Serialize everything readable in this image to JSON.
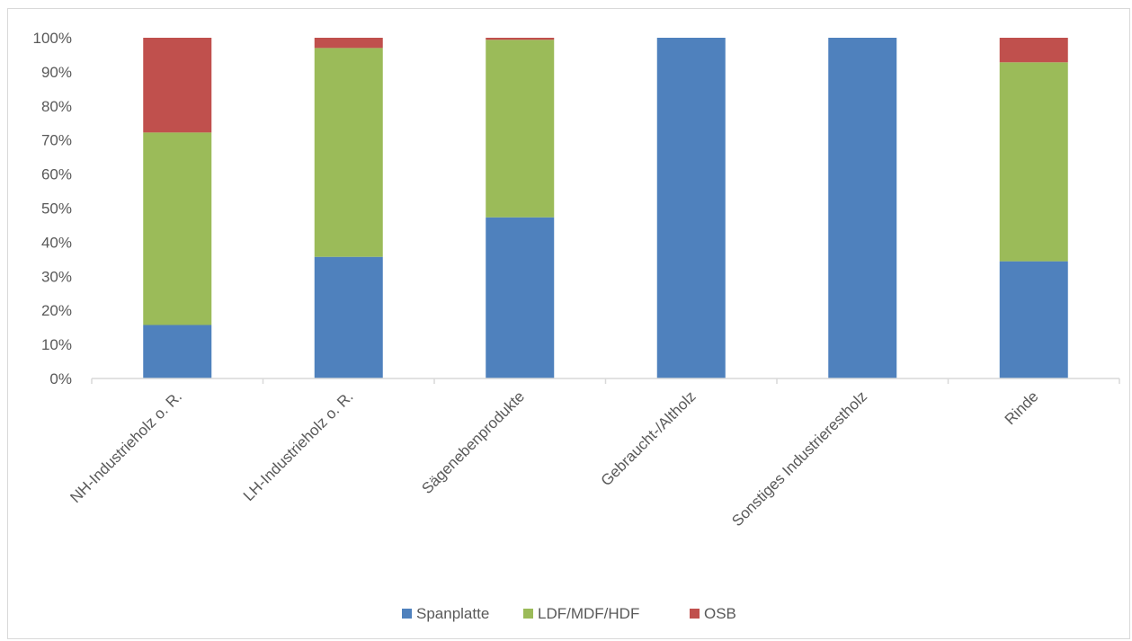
{
  "chart_data": {
    "type": "bar",
    "stacked": true,
    "percent": true,
    "title": "",
    "xlabel": "",
    "ylabel": "",
    "ylim": [
      0,
      100
    ],
    "yticks": [
      "0%",
      "10%",
      "20%",
      "30%",
      "40%",
      "50%",
      "60%",
      "70%",
      "80%",
      "90%",
      "100%"
    ],
    "grid": false,
    "legend_position": "bottom",
    "categories": [
      "NH-Industrieholz o. R.",
      "LH-Industrieholz o. R.",
      "Sägenebenprodukte",
      "Gebraucht-/Altholz",
      "Sonstiges Industrierestholz",
      "Rinde"
    ],
    "series": [
      {
        "name": "Spanplatte",
        "color": "#4f81bd",
        "values": [
          15.7,
          35.7,
          47.3,
          100,
          100,
          34.4
        ]
      },
      {
        "name": "LDF/MDF/HDF",
        "color": "#9bbb59",
        "values": [
          56.5,
          61.3,
          52.1,
          0,
          0,
          58.4
        ]
      },
      {
        "name": "OSB",
        "color": "#c0504d",
        "values": [
          27.8,
          3.0,
          0.6,
          0,
          0,
          7.2
        ]
      }
    ]
  }
}
